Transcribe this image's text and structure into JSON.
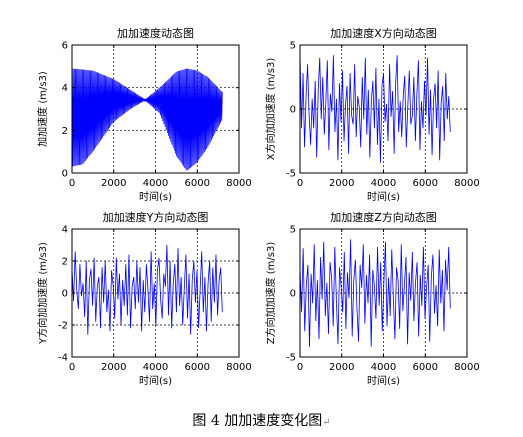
{
  "figure_caption": "图 4  加加速度变化图",
  "caption_mark": "↵",
  "colors": {
    "line": "#0000ff",
    "axes": "#000000",
    "grid": "#000000",
    "background": "#ffffff"
  },
  "chart_data": [
    {
      "type": "line",
      "title": "加加速度动态图",
      "xlabel": "时间(s)",
      "ylabel": "加加速度 (m/s3)",
      "xlim": [
        0,
        8000
      ],
      "ylim": [
        0,
        6
      ],
      "xticks": [
        0,
        2000,
        4000,
        6000,
        8000
      ],
      "yticks": [
        0,
        2,
        4,
        6
      ],
      "grid": true,
      "series": [
        {
          "pattern": "dense oscillation between a lower and an upper envelope",
          "x_end": 7200,
          "upper_envelope": {
            "x": [
              0,
              1000,
              2000,
              2800,
              3500,
              4200,
              5000,
              5500,
              6000,
              6500,
              7200
            ],
            "y": [
              4.9,
              4.8,
              4.4,
              3.9,
              3.45,
              4.0,
              4.75,
              4.9,
              4.8,
              4.5,
              3.8
            ]
          },
          "lower_envelope": {
            "x": [
              0,
              500,
              1000,
              2000,
              2800,
              3500,
              4200,
              5000,
              5500,
              6000,
              6500,
              7200
            ],
            "y": [
              0.3,
              0.4,
              1.0,
              2.4,
              3.0,
              3.4,
              2.8,
              0.8,
              0.1,
              0.5,
              1.2,
              2.5
            ]
          }
        }
      ]
    },
    {
      "type": "line",
      "title": "加加速度X方向动态图",
      "xlabel": "时间(s)",
      "ylabel": "X方向加加速度 (m/s3)",
      "xlim": [
        0,
        8000
      ],
      "ylim": [
        -5,
        5
      ],
      "xticks": [
        0,
        2000,
        4000,
        6000,
        8000
      ],
      "yticks": [
        -5,
        0,
        5
      ],
      "grid": true,
      "series": [
        {
          "x_end": 7200,
          "y": [
            4.5,
            -1.5,
            2.8,
            -3.0,
            1.0,
            3.5,
            -0.5,
            -2.8,
            0.8,
            -1.5,
            2.2,
            -3.8,
            1.5,
            4.0,
            -0.8,
            2.5,
            -2.0,
            0.5,
            3.8,
            -3.2,
            1.2,
            -0.2,
            4.2,
            -1.8,
            0.8,
            -4.0,
            2.0,
            -1.0,
            3.0,
            -2.5,
            0.4,
            1.8,
            -3.5,
            2.8,
            -0.5,
            -1.2,
            3.5,
            -2.2,
            1.0,
            0.2,
            -3.0,
            2.5,
            -0.8,
            4.0,
            -2.0,
            1.5,
            -3.8,
            0.6,
            2.2,
            -1.5,
            3.2,
            -2.8,
            0.8,
            -4.2,
            1.8,
            2.8,
            -1.0,
            0.4,
            -2.5,
            3.5,
            -0.6,
            1.4,
            -3.5,
            2.0,
            4.2,
            -1.8,
            0.6,
            -2.2,
            1.0,
            2.6,
            -3.0,
            0.2,
            3.0,
            -1.2,
            -0.5,
            2.5,
            -2.5,
            1.2,
            3.8,
            -3.2,
            0.6,
            -1.5,
            2.2,
            -0.5,
            4.0,
            -2.0,
            1.5,
            -3.6,
            0.8,
            2.0,
            -1.5,
            3.0,
            -4.0,
            0.5,
            1.8,
            -2.5,
            2.8,
            -0.8,
            1.0,
            -1.8
          ]
        }
      ]
    },
    {
      "type": "line",
      "title": "加加速度Y方向动态图",
      "xlabel": "时间(s)",
      "ylabel": "Y方向加加速度 (m/s3)",
      "xlim": [
        0,
        8000
      ],
      "ylim": [
        -4,
        4
      ],
      "xticks": [
        0,
        2000,
        4000,
        6000,
        8000
      ],
      "yticks": [
        -4,
        -2,
        0,
        2,
        4
      ],
      "grid": true,
      "series": [
        {
          "x_end": 7200,
          "y": [
            1.5,
            -0.5,
            2.6,
            0.2,
            -1.0,
            1.8,
            -0.2,
            0.6,
            -1.5,
            2.0,
            -2.6,
            0.8,
            1.5,
            -0.8,
            2.2,
            -1.8,
            0.4,
            1.0,
            -2.2,
            1.6,
            -0.6,
            2.0,
            -1.2,
            0.2,
            -2.4,
            1.4,
            0.5,
            -1.6,
            2.2,
            -0.4,
            1.2,
            -2.0,
            0.8,
            -0.8,
            1.8,
            -1.4,
            2.4,
            -2.2,
            0.4,
            1.0,
            -1.0,
            2.0,
            -0.6,
            1.6,
            -2.4,
            0.8,
            -1.2,
            1.8,
            0.2,
            -1.8,
            2.6,
            -1.0,
            0.6,
            -2.0,
            1.4,
            2.2,
            -0.4,
            -1.6,
            1.2,
            0.4,
            3.0,
            -1.4,
            2.0,
            -2.2,
            0.6,
            1.8,
            -1.2,
            2.8,
            -0.8,
            1.0,
            -2.0,
            0.4,
            2.4,
            -1.6,
            1.2,
            -2.6,
            0.8,
            2.0,
            -0.6,
            1.4,
            -2.2,
            0.2,
            2.6,
            -1.2,
            1.0,
            -2.4,
            0.6,
            2.0,
            -1.8,
            1.6,
            -0.6,
            2.4,
            -1.4,
            0.8,
            1.6,
            -1.2
          ]
        }
      ]
    },
    {
      "type": "line",
      "title": "加加速度Z方向动态图",
      "xlabel": "时间(s)",
      "ylabel": "Z方向加加速度 (m/s3)",
      "xlim": [
        0,
        8000
      ],
      "ylim": [
        -5,
        5
      ],
      "xticks": [
        0,
        2000,
        4000,
        6000,
        8000
      ],
      "yticks": [
        -5,
        0,
        5
      ],
      "grid": true,
      "series": [
        {
          "x_end": 7200,
          "y": [
            2.0,
            -1.5,
            3.5,
            -3.0,
            0.6,
            2.2,
            -4.2,
            1.5,
            -0.8,
            3.8,
            -2.2,
            1.0,
            -3.6,
            2.8,
            -0.5,
            4.0,
            -1.8,
            0.8,
            -3.2,
            2.4,
            1.2,
            -2.6,
            3.6,
            -0.6,
            -4.0,
            2.0,
            0.5,
            -1.5,
            3.2,
            -2.8,
            1.6,
            -0.4,
            4.2,
            -3.4,
            1.0,
            2.6,
            -1.2,
            -3.8,
            2.2,
            0.4,
            3.8,
            -2.4,
            1.4,
            -0.8,
            3.0,
            -4.2,
            1.8,
            0.6,
            -2.0,
            3.6,
            -1.0,
            2.4,
            -3.0,
            0.8,
            4.0,
            -2.6,
            1.2,
            -1.8,
            3.4,
            -0.4,
            -3.6,
            2.0,
            1.0,
            -2.8,
            3.8,
            -1.4,
            0.6,
            2.8,
            -4.0,
            1.6,
            -0.6,
            3.2,
            -2.2,
            0.8,
            2.4,
            -3.4,
            1.4,
            -1.0,
            3.6,
            -2.0,
            0.4,
            2.2,
            -3.8,
            1.2,
            3.0,
            -1.6,
            0.6,
            -2.6,
            3.4,
            -0.8,
            1.8,
            -3.0,
            2.6,
            0.2,
            3.6,
            -1.2
          ]
        }
      ]
    }
  ]
}
